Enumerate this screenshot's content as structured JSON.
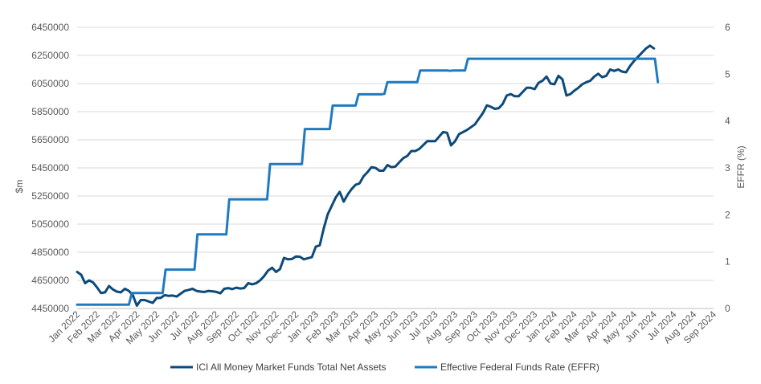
{
  "chart_data": {
    "type": "line",
    "ylabel_left": "$m",
    "ylabel_right": "EFFR (%)",
    "ylim_left": [
      4450000,
      6450000
    ],
    "yticks_left": [
      "6450000",
      "6250000",
      "6050000",
      "5850000",
      "5650000",
      "5450000",
      "5250000",
      "5050000",
      "4850000",
      "4650000",
      "4450000"
    ],
    "ylim_right": [
      0,
      6
    ],
    "yticks_right": [
      "6",
      "5",
      "4",
      "3",
      "2",
      "1",
      "0"
    ],
    "x_month_labels": [
      "Jan 2022",
      "Feb 2022",
      "Mar 2022",
      "Apr 2022",
      "May 2022",
      "Jun 2022",
      "Jul 2022",
      "Aug 2022",
      "Sep 2022",
      "Oct 2022",
      "Nov 2022",
      "Dec 2022",
      "Jan 2023",
      "Feb 2023",
      "Mar 2023",
      "Apr 2023",
      "May 2023",
      "Jun 2023",
      "Jul 2023",
      "Aug 2023",
      "Sep 2023",
      "Oct 2023",
      "Nov 2023",
      "Dec 2023",
      "Jan 2024",
      "Feb 2024",
      "Mar 2024",
      "Apr 2024",
      "May 2024",
      "Jun 2024",
      "Jul 2024",
      "Aug 2024",
      "Sep 2024"
    ],
    "legend_position": "bottom",
    "grid": "horizontal",
    "series": [
      {
        "name": "ICI All Money Market Funds Total Net Assets",
        "axis": "left",
        "color": "#0d4a7a",
        "points": [
          [
            0.0,
            4710000
          ],
          [
            0.2,
            4690000
          ],
          [
            0.4,
            4630000
          ],
          [
            0.6,
            4650000
          ],
          [
            0.8,
            4635000
          ],
          [
            1.0,
            4600000
          ],
          [
            1.2,
            4560000
          ],
          [
            1.4,
            4565000
          ],
          [
            1.6,
            4610000
          ],
          [
            1.8,
            4585000
          ],
          [
            2.0,
            4570000
          ],
          [
            2.2,
            4565000
          ],
          [
            2.4,
            4590000
          ],
          [
            2.6,
            4575000
          ],
          [
            2.8,
            4545000
          ],
          [
            3.0,
            4470000
          ],
          [
            3.2,
            4510000
          ],
          [
            3.4,
            4510000
          ],
          [
            3.6,
            4500000
          ],
          [
            3.8,
            4490000
          ],
          [
            4.0,
            4525000
          ],
          [
            4.2,
            4525000
          ],
          [
            4.4,
            4545000
          ],
          [
            4.6,
            4540000
          ],
          [
            4.8,
            4542000
          ],
          [
            5.0,
            4535000
          ],
          [
            5.2,
            4555000
          ],
          [
            5.4,
            4575000
          ],
          [
            5.6,
            4582000
          ],
          [
            5.8,
            4590000
          ],
          [
            6.0,
            4575000
          ],
          [
            6.2,
            4570000
          ],
          [
            6.4,
            4568000
          ],
          [
            6.6,
            4575000
          ],
          [
            6.8,
            4572000
          ],
          [
            7.0,
            4568000
          ],
          [
            7.2,
            4558000
          ],
          [
            7.4,
            4590000
          ],
          [
            7.6,
            4595000
          ],
          [
            7.8,
            4588000
          ],
          [
            8.0,
            4598000
          ],
          [
            8.2,
            4592000
          ],
          [
            8.4,
            4595000
          ],
          [
            8.6,
            4630000
          ],
          [
            8.8,
            4622000
          ],
          [
            9.0,
            4630000
          ],
          [
            9.2,
            4650000
          ],
          [
            9.4,
            4680000
          ],
          [
            9.6,
            4720000
          ],
          [
            9.8,
            4740000
          ],
          [
            10.0,
            4710000
          ],
          [
            10.2,
            4730000
          ],
          [
            10.4,
            4810000
          ],
          [
            10.6,
            4800000
          ],
          [
            10.8,
            4802000
          ],
          [
            11.0,
            4820000
          ],
          [
            11.2,
            4818000
          ],
          [
            11.4,
            4800000
          ],
          [
            11.6,
            4808000
          ],
          [
            11.8,
            4815000
          ],
          [
            12.0,
            4890000
          ],
          [
            12.2,
            4900000
          ],
          [
            12.4,
            5020000
          ],
          [
            12.6,
            5120000
          ],
          [
            12.8,
            5180000
          ],
          [
            13.0,
            5240000
          ],
          [
            13.2,
            5280000
          ],
          [
            13.4,
            5210000
          ],
          [
            13.6,
            5260000
          ],
          [
            13.8,
            5300000
          ],
          [
            14.0,
            5330000
          ],
          [
            14.2,
            5340000
          ],
          [
            14.4,
            5390000
          ],
          [
            14.6,
            5420000
          ],
          [
            14.8,
            5455000
          ],
          [
            15.0,
            5450000
          ],
          [
            15.2,
            5430000
          ],
          [
            15.4,
            5430000
          ],
          [
            15.6,
            5470000
          ],
          [
            15.8,
            5455000
          ],
          [
            16.0,
            5460000
          ],
          [
            16.2,
            5490000
          ],
          [
            16.4,
            5520000
          ],
          [
            16.6,
            5535000
          ],
          [
            16.8,
            5570000
          ],
          [
            17.0,
            5570000
          ],
          [
            17.2,
            5585000
          ],
          [
            17.6,
            5640000
          ],
          [
            18.0,
            5640000
          ],
          [
            18.4,
            5705000
          ],
          [
            18.6,
            5700000
          ],
          [
            18.8,
            5610000
          ],
          [
            19.0,
            5640000
          ],
          [
            19.2,
            5690000
          ],
          [
            19.6,
            5720000
          ],
          [
            20.0,
            5760000
          ],
          [
            20.4,
            5840000
          ],
          [
            20.6,
            5895000
          ],
          [
            20.8,
            5885000
          ],
          [
            21.0,
            5870000
          ],
          [
            21.2,
            5875000
          ],
          [
            21.4,
            5905000
          ],
          [
            21.6,
            5965000
          ],
          [
            21.8,
            5975000
          ],
          [
            22.0,
            5960000
          ],
          [
            22.2,
            5960000
          ],
          [
            22.4,
            5990000
          ],
          [
            22.6,
            6020000
          ],
          [
            22.8,
            6020000
          ],
          [
            23.0,
            6010000
          ],
          [
            23.2,
            6055000
          ],
          [
            23.4,
            6070000
          ],
          [
            23.6,
            6100000
          ],
          [
            23.8,
            6050000
          ],
          [
            24.0,
            6045000
          ],
          [
            24.2,
            6105000
          ],
          [
            24.4,
            6080000
          ],
          [
            24.6,
            5965000
          ],
          [
            24.8,
            5975000
          ],
          [
            25.0,
            6000000
          ],
          [
            25.2,
            6020000
          ],
          [
            25.4,
            6045000
          ],
          [
            25.6,
            6060000
          ],
          [
            25.8,
            6070000
          ],
          [
            26.0,
            6100000
          ],
          [
            26.2,
            6120000
          ],
          [
            26.4,
            6095000
          ],
          [
            26.6,
            6105000
          ],
          [
            26.8,
            6150000
          ],
          [
            27.0,
            6140000
          ],
          [
            27.2,
            6150000
          ],
          [
            27.4,
            6135000
          ],
          [
            27.6,
            6130000
          ],
          [
            27.8,
            6175000
          ],
          [
            28.0,
            6210000
          ],
          [
            28.2,
            6240000
          ],
          [
            28.4,
            6270000
          ],
          [
            28.6,
            6300000
          ],
          [
            28.8,
            6320000
          ],
          [
            29.0,
            6300000
          ]
        ]
      },
      {
        "name": "Effective Federal Funds Rate (EFFR)",
        "axis": "right",
        "color": "#1f7bc1",
        "points": [
          [
            0.0,
            0.08
          ],
          [
            2.6,
            0.08
          ],
          [
            2.75,
            0.33
          ],
          [
            4.3,
            0.33
          ],
          [
            4.45,
            0.83
          ],
          [
            5.9,
            0.83
          ],
          [
            6.05,
            1.58
          ],
          [
            7.5,
            1.58
          ],
          [
            7.65,
            2.33
          ],
          [
            9.55,
            2.33
          ],
          [
            9.7,
            3.08
          ],
          [
            11.3,
            3.08
          ],
          [
            11.45,
            3.83
          ],
          [
            12.7,
            3.83
          ],
          [
            12.85,
            4.33
          ],
          [
            14.0,
            4.33
          ],
          [
            14.15,
            4.57
          ],
          [
            15.3,
            4.57
          ],
          [
            15.45,
            4.58
          ],
          [
            15.6,
            4.83
          ],
          [
            17.1,
            4.83
          ],
          [
            17.25,
            5.08
          ],
          [
            18.6,
            5.08
          ],
          [
            18.75,
            5.07
          ],
          [
            18.9,
            5.08
          ],
          [
            19.5,
            5.08
          ],
          [
            19.65,
            5.33
          ],
          [
            29.05,
            5.33
          ],
          [
            29.2,
            4.83
          ]
        ]
      }
    ]
  }
}
